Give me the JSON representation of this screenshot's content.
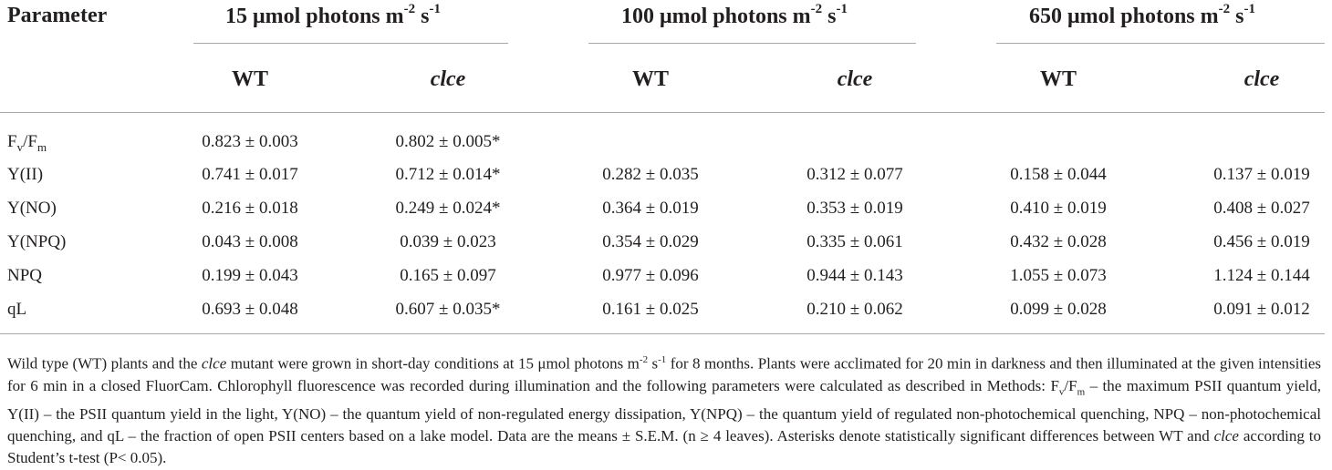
{
  "table": {
    "param_header": "Parameter",
    "groups": [
      {
        "label": "15 μmol photons m",
        "exp1": "-2",
        "mid": " s",
        "exp2": "-1"
      },
      {
        "label": "100 μmol photons m",
        "exp1": "-2",
        "mid": " s",
        "exp2": "-1"
      },
      {
        "label": "650 μmol photons m",
        "exp1": "-2",
        "mid": " s",
        "exp2": "-1"
      }
    ],
    "subheaders": [
      "WT",
      "clce",
      "WT",
      "clce",
      "WT",
      "clce"
    ],
    "rows": [
      {
        "label_main": "F",
        "label_sub1": "v",
        "label_mid": "/F",
        "label_sub2": "m",
        "values": [
          "0.823 ± 0.003",
          "0.802 ± 0.005*",
          "",
          "",
          "",
          ""
        ]
      },
      {
        "label": "Y(II)",
        "values": [
          "0.741 ± 0.017",
          "0.712 ± 0.014*",
          "0.282 ± 0.035",
          "0.312 ± 0.077",
          "0.158 ± 0.044",
          "0.137 ± 0.019"
        ]
      },
      {
        "label": "Y(NO)",
        "values": [
          "0.216 ± 0.018",
          "0.249 ± 0.024*",
          "0.364 ± 0.019",
          "0.353 ± 0.019",
          "0.410 ± 0.019",
          "0.408 ± 0.027"
        ]
      },
      {
        "label": "Y(NPQ)",
        "values": [
          "0.043 ± 0.008",
          "0.039 ± 0.023",
          "0.354 ± 0.029",
          "0.335 ± 0.061",
          "0.432 ± 0.028",
          "0.456 ± 0.019"
        ]
      },
      {
        "label": "NPQ",
        "values": [
          "0.199 ± 0.043",
          "0.165 ± 0.097",
          "0.977 ± 0.096",
          "0.944 ± 0.143",
          "1.055 ± 0.073",
          "1.124 ± 0.144"
        ]
      },
      {
        "label": "qL",
        "values": [
          "0.693 ± 0.048",
          "0.607 ± 0.035*",
          "0.161 ± 0.025",
          "0.210 ± 0.062",
          "0.099 ± 0.028",
          "0.091 ± 0.012"
        ]
      }
    ]
  },
  "caption": {
    "p1": "Wild type (WT) plants and the ",
    "p1_ital": "clce",
    "p2": " mutant were grown in short-day conditions at 15 μmol photons m",
    "p2_exp1": "-2",
    "p3": " s",
    "p3_exp2": "-1",
    "p4": " for 8 months. Plants were acclimated for 20 min in darkness and then illuminated at the given intensities for 6 min in a closed FluorCam. Chlorophyll fluorescence was recorded during illumination and the following parameters were calculated as described in Methods: F",
    "p4_sub1": "v",
    "p5": "/F",
    "p5_sub2": "m",
    "p6": " – the maximum PSII quantum yield, Y(II) – the PSII quantum yield in the light, Y(NO) – the quantum yield of non-regulated energy dissipation, Y(NPQ) – the quantum yield of regulated non-photochemical quenching, NPQ – non-photochemical quenching, and qL – the fraction of open PSII centers based on a lake model. Data are the means ± S.E.M. (n ≥ 4 leaves). Asterisks denote statistically significant differences between WT and ",
    "p6_ital": "clce",
    "p7": " according to Student’s t-test (P< 0.05)."
  }
}
